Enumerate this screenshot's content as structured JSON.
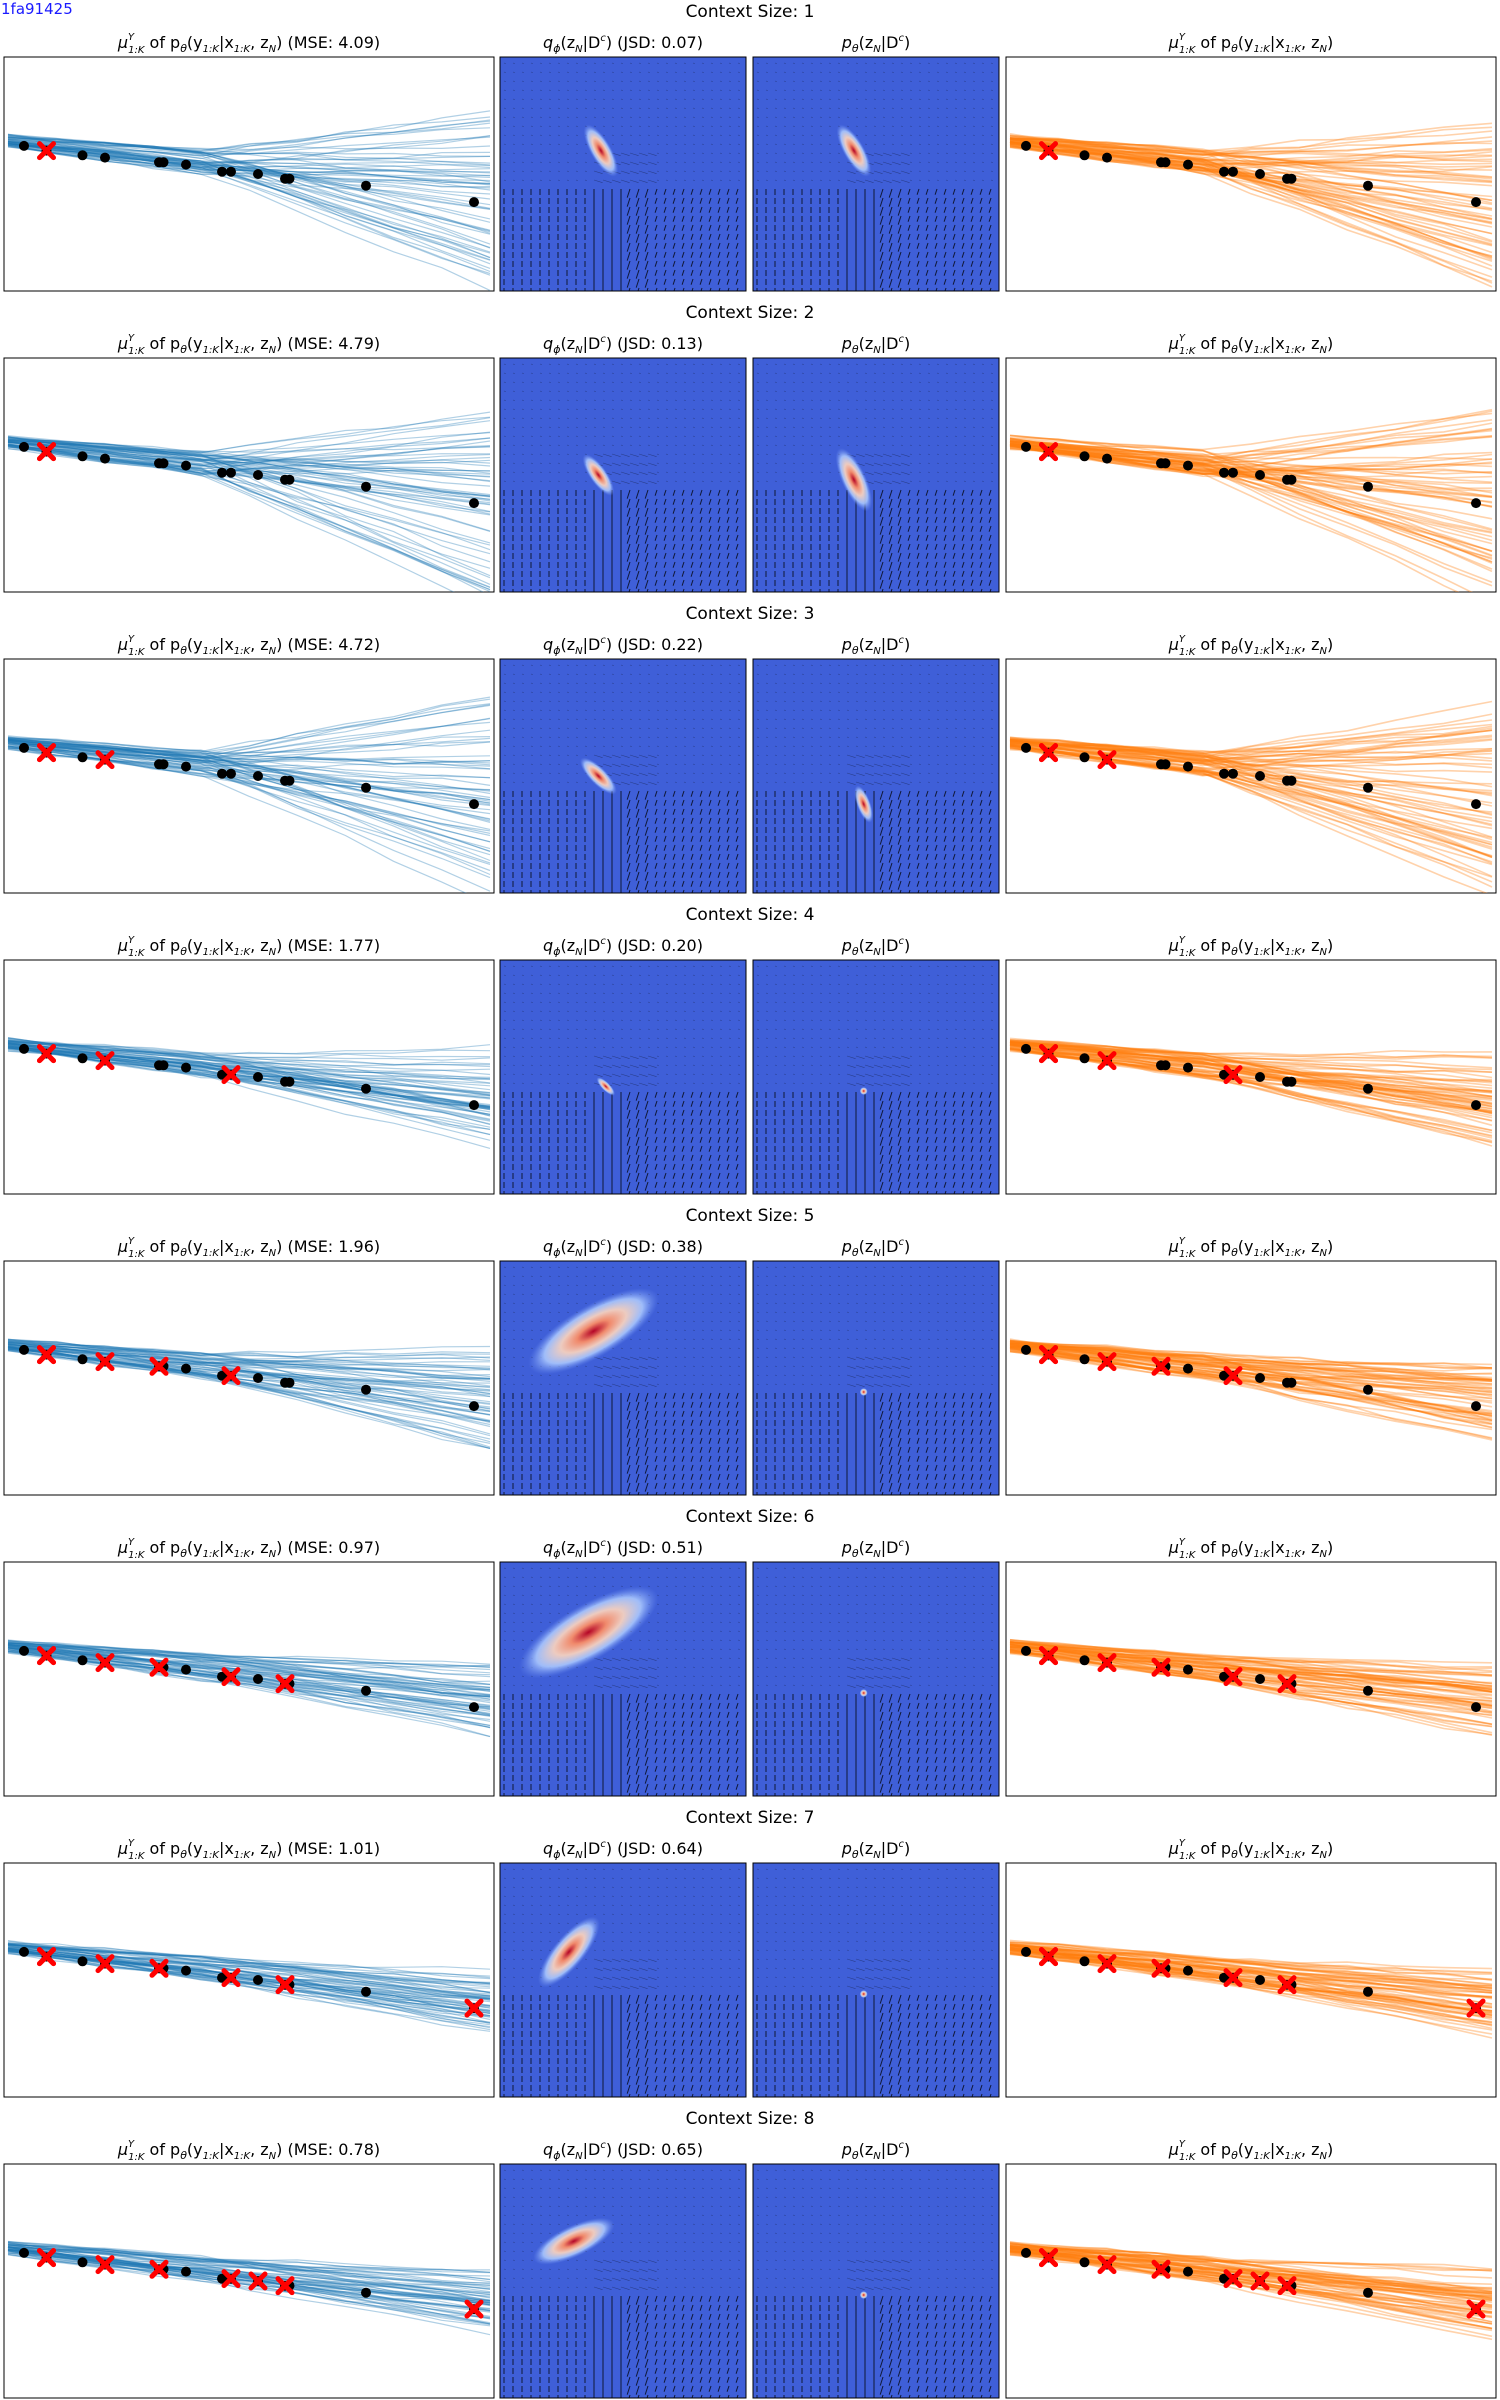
{
  "figure_tag": "1fa91425",
  "colors": {
    "samples_blue": "#1f77b4",
    "samples_orange": "#ff7f0e",
    "target_point": "#000000",
    "context_marker": "#ff0000",
    "density_background": "#3f5fd8",
    "density_peak": "#b40426",
    "quiver": "#000000"
  },
  "panel_titles": {
    "left_prefix": "μ",
    "left_super": "Y",
    "left_sub": "1:K",
    "left_rest": " of p",
    "left_theta": "θ",
    "left_args": "(y",
    "left_args_sub": "1:K",
    "left_args_mid": "|x",
    "left_args_sub2": "1:K",
    "left_args_end": ", z",
    "left_z_sub": "N",
    "left_close": ")",
    "mse_label": "MSE",
    "q_prefix": "q",
    "q_sub": "ϕ",
    "q_args": "(z",
    "q_z_sub": "N",
    "q_given": "|D",
    "q_super": "c",
    "q_close": ")",
    "jsd_label": "JSD",
    "p_prefix": "p",
    "p_sub": "θ"
  },
  "row_title_prefix": "Context Size",
  "chart_data": {
    "type": "scatter",
    "description_axes": "no ticks or axis labels shown",
    "target_points": {
      "x": [
        0.0,
        0.05,
        0.13,
        0.18,
        0.3,
        0.31,
        0.36,
        0.44,
        0.46,
        0.52,
        0.58,
        0.59,
        0.76,
        1.0
      ],
      "y": [
        0.62,
        0.6,
        0.58,
        0.57,
        0.55,
        0.55,
        0.54,
        0.51,
        0.51,
        0.5,
        0.48,
        0.48,
        0.45,
        0.38
      ]
    },
    "rows": [
      {
        "context_size": 1,
        "mse": 4.09,
        "jsd": 0.07,
        "context_idx": [
          1
        ],
        "q_blob": {
          "cx": 0.41,
          "cy": 0.4,
          "len": 0.12,
          "angle": 60
        },
        "p_blob": {
          "cx": 0.41,
          "cy": 0.4,
          "len": 0.12,
          "angle": 60
        }
      },
      {
        "context_size": 2,
        "mse": 4.79,
        "jsd": 0.13,
        "context_idx": [
          1,
          1
        ],
        "q_blob": {
          "cx": 0.4,
          "cy": 0.5,
          "len": 0.1,
          "angle": 55
        },
        "p_blob": {
          "cx": 0.41,
          "cy": 0.52,
          "len": 0.14,
          "angle": 65
        }
      },
      {
        "context_size": 3,
        "mse": 4.72,
        "jsd": 0.22,
        "context_idx": [
          1,
          1,
          3
        ],
        "q_blob": {
          "cx": 0.4,
          "cy": 0.5,
          "len": 0.1,
          "angle": 45
        },
        "p_blob": {
          "cx": 0.45,
          "cy": 0.62,
          "len": 0.08,
          "angle": 70
        }
      },
      {
        "context_size": 4,
        "mse": 1.77,
        "jsd": 0.2,
        "context_idx": [
          1,
          1,
          3,
          8
        ],
        "q_blob": {
          "cx": 0.43,
          "cy": 0.54,
          "len": 0.05,
          "angle": 45
        },
        "p_blob": {
          "cx": 0.45,
          "cy": 0.56,
          "len": 0.015,
          "angle": 0
        }
      },
      {
        "context_size": 5,
        "mse": 1.96,
        "jsd": 0.38,
        "context_idx": [
          1,
          1,
          3,
          4,
          8
        ],
        "q_blob": {
          "cx": 0.38,
          "cy": 0.3,
          "len": 0.3,
          "angle": -30
        },
        "p_blob": {
          "cx": 0.45,
          "cy": 0.56,
          "len": 0.015,
          "angle": 0
        }
      },
      {
        "context_size": 6,
        "mse": 0.97,
        "jsd": 0.51,
        "context_idx": [
          1,
          1,
          3,
          4,
          8,
          10
        ],
        "q_blob": {
          "cx": 0.36,
          "cy": 0.3,
          "len": 0.32,
          "angle": -30
        },
        "p_blob": {
          "cx": 0.45,
          "cy": 0.56,
          "len": 0.015,
          "angle": 0
        }
      },
      {
        "context_size": 7,
        "mse": 1.01,
        "jsd": 0.64,
        "context_idx": [
          1,
          1,
          3,
          4,
          8,
          10,
          13
        ],
        "q_blob": {
          "cx": 0.28,
          "cy": 0.38,
          "len": 0.18,
          "angle": -50
        },
        "p_blob": {
          "cx": 0.45,
          "cy": 0.56,
          "len": 0.015,
          "angle": 0
        }
      },
      {
        "context_size": 8,
        "mse": 0.78,
        "jsd": 0.65,
        "context_idx": [
          1,
          1,
          3,
          4,
          8,
          9,
          10,
          13
        ],
        "q_blob": {
          "cx": 0.3,
          "cy": 0.33,
          "len": 0.18,
          "angle": -25
        },
        "p_blob": {
          "cx": 0.45,
          "cy": 0.56,
          "len": 0.015,
          "angle": 0
        }
      }
    ]
  }
}
